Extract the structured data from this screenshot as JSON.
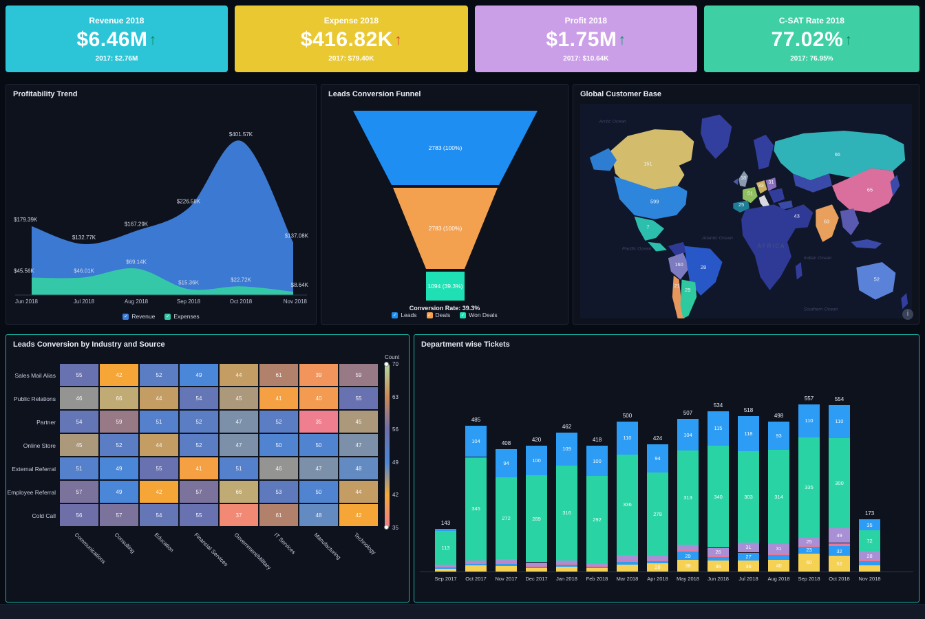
{
  "kpis": [
    {
      "title": "Revenue 2018",
      "value": "$6.46M",
      "arrow_glyph": "↑",
      "trend": "up",
      "trend_color": "#0e8f5a",
      "prev": "2017: $2.76M",
      "bg": "#2cc5d8"
    },
    {
      "title": "Expense 2018",
      "value": "$416.82K",
      "arrow_glyph": "↑",
      "trend": "up",
      "trend_color": "#e04b3a",
      "prev": "2017: $79.40K",
      "bg": "#e9c832"
    },
    {
      "title": "Profit 2018",
      "value": "$1.75M",
      "arrow_glyph": "↑",
      "trend": "up",
      "trend_color": "#0e9f72",
      "prev": "2017: $10.64K",
      "bg": "#cb9fe8"
    },
    {
      "title": "C-SAT Rate 2018",
      "value": "77.02%",
      "arrow_glyph": "↑",
      "trend": "up",
      "trend_color": "#0c8f68",
      "prev": "2017: 76.95%",
      "bg": "#3ed0a4"
    }
  ],
  "chart_data": [
    {
      "id": "profitability_trend",
      "type": "area",
      "title": "Profitability Trend",
      "categories": [
        "Jun 2018",
        "Jul 2018",
        "Aug 2018",
        "Sep 2018",
        "Oct 2018",
        "Nov 2018"
      ],
      "series": [
        {
          "name": "Revenue",
          "color": "#3d7edb",
          "values": [
            179.39,
            132.77,
            167.29,
            226.58,
            401.57,
            137.08
          ],
          "labels": [
            "$179.39K",
            "$132.77K",
            "$167.29K",
            "$226.58K",
            "$401.57K",
            "$137.08K"
          ]
        },
        {
          "name": "Expenses",
          "color": "#35c8a8",
          "values": [
            45.56,
            46.01,
            69.14,
            15.36,
            22.72,
            8.64
          ],
          "labels": [
            "$45.56K",
            "$46.01K",
            "$69.14K",
            "$15.36K",
            "$22.72K",
            "$8.64K"
          ]
        }
      ],
      "ylim": [
        0,
        430
      ],
      "unit": "K USD",
      "legend_position": "bottom"
    },
    {
      "id": "leads_funnel",
      "type": "funnel",
      "title": "Leads Conversion Funnel",
      "stages": [
        {
          "name": "Leads",
          "label": "2783 (100%)",
          "value": 2783,
          "pct": 100,
          "color": "#1e8ef2"
        },
        {
          "name": "Deals",
          "label": "2783 (100%)",
          "value": 2783,
          "pct": 100,
          "color": "#f3a04f"
        },
        {
          "name": "Won Deals",
          "label": "1094 (39.3%)",
          "value": 1094,
          "pct": 39.3,
          "color": "#1fe0b4"
        }
      ],
      "footer": "Conversion Rate: 39.3%",
      "legend": [
        "Leads",
        "Deals",
        "Won Deals"
      ]
    },
    {
      "id": "global_customers",
      "type": "map",
      "title": "Global Customer Base",
      "countries": [
        {
          "name": "Canada",
          "value": "151",
          "color": "#d4bc6d"
        },
        {
          "name": "Alaska",
          "value": "",
          "color": "#2d7dd2"
        },
        {
          "name": "Greenland",
          "value": "",
          "color": "#333f9e"
        },
        {
          "name": "USA",
          "value": "599",
          "color": "#2d86dc"
        },
        {
          "name": "Mexico",
          "value": "7",
          "color": "#2dbfae"
        },
        {
          "name": "CentralAmerica",
          "value": "",
          "color": "#2dbfae"
        },
        {
          "name": "Colombia",
          "value": "",
          "color": "#2e3a96"
        },
        {
          "name": "Peru",
          "value": "160",
          "color": "#7d7cc0"
        },
        {
          "name": "Brazil",
          "value": "28",
          "color": "#2857c8"
        },
        {
          "name": "Chile",
          "value": "21",
          "color": "#e8975c"
        },
        {
          "name": "Argentina",
          "value": "29",
          "color": "#2fc9a0"
        },
        {
          "name": "UK",
          "value": "18",
          "color": "#8899b0"
        },
        {
          "name": "Ireland",
          "value": "",
          "color": "#4a5aa8"
        },
        {
          "name": "Scandinavia",
          "value": "",
          "color": "#333f9e"
        },
        {
          "name": "France",
          "value": "51",
          "color": "#8fbf5f"
        },
        {
          "name": "Spain",
          "value": "25",
          "color": "#1f7d96"
        },
        {
          "name": "Germany",
          "value": "33",
          "color": "#cdb05e"
        },
        {
          "name": "Italy",
          "value": "",
          "color": "#d8d8e0"
        },
        {
          "name": "Poland",
          "value": "31",
          "color": "#8a6fc0"
        },
        {
          "name": "EasternEurope",
          "value": "",
          "color": "#323d9b"
        },
        {
          "name": "Turkey",
          "value": "",
          "color": "#3a4aa8"
        },
        {
          "name": "Russia",
          "value": "66",
          "color": "#2fb3b8"
        },
        {
          "name": "CentralAsia",
          "value": "",
          "color": "#3a4aa8"
        },
        {
          "name": "China",
          "value": "65",
          "color": "#da6f9e"
        },
        {
          "name": "MiddleEast",
          "value": "43",
          "color": "#2e3a96"
        },
        {
          "name": "India",
          "value": "63",
          "color": "#e8a05c"
        },
        {
          "name": "SEAsia",
          "value": "",
          "color": "#5a5ab0"
        },
        {
          "name": "Indonesia",
          "value": "",
          "color": "#3a4aa8"
        },
        {
          "name": "Japan",
          "value": "",
          "color": "#3a4aa8"
        },
        {
          "name": "Africa",
          "value": "",
          "color": "#2e3a96"
        },
        {
          "name": "Madagascar",
          "value": "",
          "color": "#323d9b"
        },
        {
          "name": "Australia",
          "value": "52",
          "color": "#5a82d8"
        },
        {
          "name": "NewZealand",
          "value": "",
          "color": "#333f9e"
        }
      ],
      "ocean_labels": [
        "Arctic Ocean",
        "Pacific Ocean",
        "Atlantic Ocean",
        "Indian Ocean",
        "Southern Ocean"
      ],
      "region_labels": [
        "AFRICA"
      ]
    },
    {
      "id": "leads_heatmap",
      "type": "heatmap",
      "title": "Leads Conversion by Industry and Source",
      "rows": [
        "Sales Mail Alias",
        "Public Relations",
        "Partner",
        "Online Store",
        "External Referral",
        "Employee Referral",
        "Cold Call"
      ],
      "columns": [
        "Communications",
        "Consulting",
        "Education",
        "Financial Services",
        "Government/Military",
        "IT Services",
        "Manufacturing",
        "Technology"
      ],
      "values": [
        [
          55,
          42,
          52,
          49,
          44,
          61,
          39,
          59
        ],
        [
          46,
          66,
          44,
          54,
          45,
          41,
          40,
          55
        ],
        [
          54,
          59,
          51,
          52,
          47,
          52,
          35,
          45
        ],
        [
          45,
          52,
          44,
          52,
          47,
          50,
          50,
          47
        ],
        [
          51,
          49,
          55,
          41,
          51,
          46,
          47,
          48
        ],
        [
          57,
          49,
          42,
          57,
          66,
          53,
          50,
          44
        ],
        [
          56,
          57,
          54,
          55,
          37,
          61,
          48,
          42
        ]
      ],
      "legend_title": "Count",
      "legend_ticks": [
        70,
        63,
        56,
        49,
        42,
        35
      ],
      "colormap": [
        {
          "v": 35,
          "c": "#ef7e8e"
        },
        {
          "v": 42,
          "c": "#f5a637"
        },
        {
          "v": 49,
          "c": "#4b87d8"
        },
        {
          "v": 56,
          "c": "#6e6fa9"
        },
        {
          "v": 63,
          "c": "#cd8854"
        },
        {
          "v": 70,
          "c": "#b2d9a0"
        }
      ]
    },
    {
      "id": "dept_tickets",
      "type": "stacked_bar",
      "title": "Department wise Tickets",
      "categories": [
        "Sep 2017",
        "Oct 2017",
        "Nov 2017",
        "Dec 2017",
        "Jan 2018",
        "Feb 2018",
        "Mar 2018",
        "Apr 2018",
        "May 2018",
        "Jun 2018",
        "Jul 2018",
        "Aug 2018",
        "Sep 2018",
        "Oct 2018",
        "Nov 2018"
      ],
      "totals": [
        143,
        485,
        408,
        420,
        462,
        418,
        500,
        424,
        507,
        534,
        518,
        498,
        557,
        554,
        173
      ],
      "series": [
        {
          "name": "segment-yellow",
          "color": "#f5d254",
          "values": [
            10,
            20,
            18,
            12,
            16,
            12,
            22,
            28,
            38,
            36,
            36,
            40,
            60,
            52,
            20
          ]
        },
        {
          "name": "segment-blue-small",
          "color": "#2d9cf4",
          "values": [
            4,
            6,
            8,
            5,
            6,
            5,
            10,
            6,
            29,
            12,
            27,
            15,
            23,
            32,
            15
          ]
        },
        {
          "name": "segment-pink",
          "color": "#e8799a",
          "values": [
            2,
            3,
            3,
            3,
            3,
            2,
            4,
            3,
            4,
            5,
            3,
            5,
            4,
            11,
            3
          ]
        },
        {
          "name": "segment-purple",
          "color": "#a98fd6",
          "values": [
            6,
            7,
            13,
            11,
            12,
            7,
            18,
            15,
            19,
            26,
            31,
            31,
            25,
            49,
            28
          ]
        },
        {
          "name": "segment-green",
          "color": "#2ad3a4",
          "values": [
            113,
            345,
            272,
            289,
            316,
            292,
            336,
            278,
            313,
            340,
            303,
            314,
            335,
            300,
            72
          ]
        },
        {
          "name": "segment-blue",
          "color": "#2d9cf4",
          "values": [
            8,
            104,
            94,
            100,
            109,
            100,
            110,
            94,
            104,
            115,
            118,
            93,
            110,
            110,
            35
          ]
        }
      ]
    }
  ]
}
